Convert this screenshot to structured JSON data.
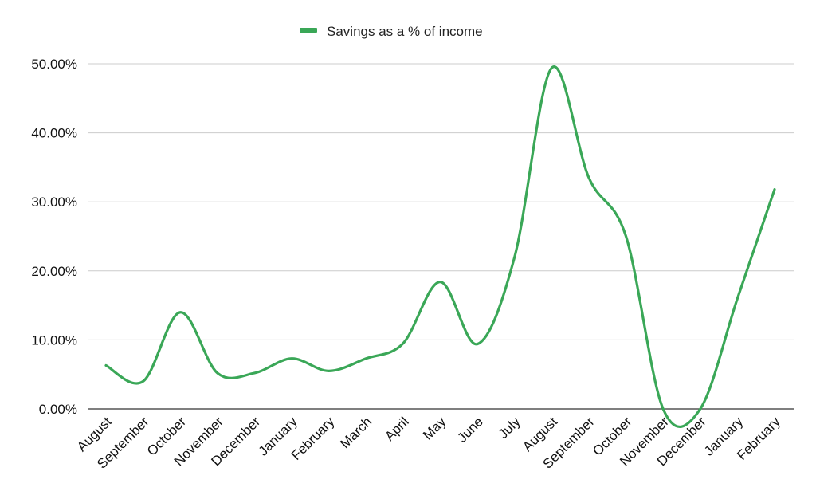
{
  "chart_data": {
    "type": "line",
    "legend_position": "top-center",
    "smooth": true,
    "grid": true,
    "categories": [
      "August",
      "September",
      "October",
      "November",
      "December",
      "January",
      "February",
      "March",
      "April",
      "May",
      "June",
      "July",
      "August",
      "September",
      "October",
      "November",
      "December",
      "January",
      "February"
    ],
    "ylim": [
      0,
      50
    ],
    "y_ticks": [
      0,
      10,
      20,
      30,
      40,
      50
    ],
    "y_tick_labels": [
      "0.00%",
      "10.00%",
      "20.00%",
      "30.00%",
      "40.00%",
      "50.00%"
    ],
    "series": [
      {
        "name": "Savings as a % of income",
        "color": "#3aa757",
        "values": [
          6.3,
          4.0,
          14.0,
          5.2,
          5.2,
          7.3,
          5.5,
          7.3,
          9.5,
          18.4,
          9.4,
          22.0,
          49.4,
          33.5,
          25.0,
          0.0,
          0.0,
          16.0,
          31.8
        ]
      }
    ]
  }
}
